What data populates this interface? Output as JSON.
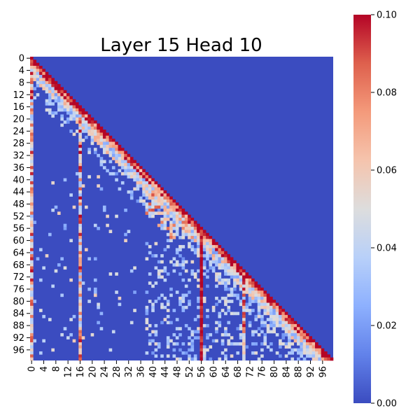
{
  "chart_data": {
    "type": "heatmap",
    "title": "Layer 15 Head 10",
    "xlabel": "",
    "ylabel": "",
    "size": 100,
    "x_tick_labels": [
      "0",
      "4",
      "8",
      "12",
      "16",
      "20",
      "24",
      "28",
      "32",
      "36",
      "40",
      "44",
      "48",
      "52",
      "56",
      "60",
      "64",
      "68",
      "72",
      "76",
      "80",
      "84",
      "88",
      "92",
      "96"
    ],
    "y_tick_labels": [
      "0",
      "4",
      "8",
      "12",
      "16",
      "20",
      "24",
      "28",
      "32",
      "36",
      "40",
      "44",
      "48",
      "52",
      "56",
      "60",
      "64",
      "68",
      "72",
      "76",
      "80",
      "84",
      "88",
      "92",
      "96"
    ],
    "tick_values": [
      0,
      4,
      8,
      12,
      16,
      20,
      24,
      28,
      32,
      36,
      40,
      44,
      48,
      52,
      56,
      60,
      64,
      68,
      72,
      76,
      80,
      84,
      88,
      92,
      96
    ],
    "colorbar": {
      "colormap": "coolwarm",
      "vmin": 0.0,
      "vmax": 0.1,
      "tick_labels": [
        "0.00",
        "0.02",
        "0.04",
        "0.06",
        "0.08",
        "0.10"
      ],
      "tick_values": [
        0.0,
        0.02,
        0.04,
        0.06,
        0.08,
        0.1
      ]
    },
    "structure": "causal (lower-triangular) attention; upper triangle = 0",
    "strong_columns": [
      0,
      16,
      56,
      70
    ],
    "colors": {
      "low": "#3b4cc0",
      "mid": "#dddddd",
      "high": "#b40426"
    }
  }
}
